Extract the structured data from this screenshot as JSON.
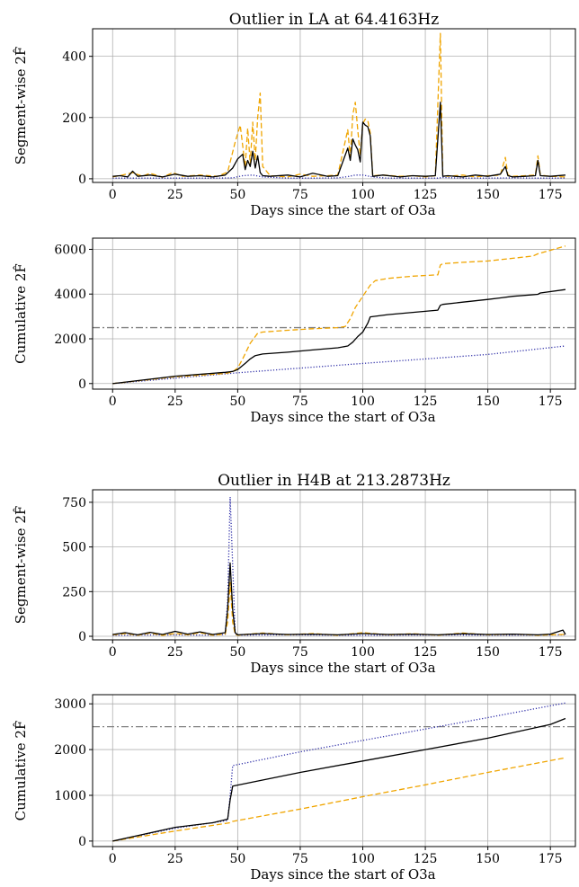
{
  "figure": {
    "background": "#ffffff",
    "grid_color": "#b0b0b0"
  },
  "chart_data": [
    {
      "id": "la_segment",
      "type": "line",
      "title": "Outlier in LA at 64.4163Hz",
      "xlabel": "Days since the start of O3a",
      "ylabel": "Segment-wise 2F̂",
      "xlim": [
        -8,
        185
      ],
      "ylim": [
        -12,
        490
      ],
      "xticks": [
        0,
        25,
        50,
        75,
        100,
        125,
        150,
        175
      ],
      "yticks": [
        0,
        200,
        400
      ],
      "grid": true,
      "series": [
        {
          "style": "dotted",
          "color": "#2f2fa8",
          "x": [
            0,
            10,
            20,
            30,
            40,
            48,
            52,
            56,
            60,
            70,
            80,
            90,
            94,
            97,
            100,
            104,
            110,
            120,
            130,
            132,
            140,
            150,
            160,
            170,
            181
          ],
          "y": [
            2,
            2,
            2,
            2,
            2,
            3,
            10,
            12,
            6,
            2,
            2,
            3,
            7,
            12,
            12,
            6,
            2,
            2,
            2,
            4,
            2,
            2,
            3,
            2,
            2
          ]
        },
        {
          "style": "dashed",
          "color": "#f0a500",
          "x": [
            0,
            4,
            8,
            12,
            15,
            20,
            24,
            28,
            35,
            42,
            46,
            49,
            51,
            53,
            54,
            55,
            56,
            57,
            58,
            59,
            60,
            63,
            70,
            75,
            80,
            86,
            90,
            94,
            95,
            96,
            97,
            98,
            99,
            100,
            101,
            102,
            103,
            104,
            108,
            115,
            120,
            125,
            129,
            131,
            132,
            134,
            140,
            145,
            150,
            155,
            157,
            158,
            160,
            165,
            169,
            170,
            171,
            175,
            181
          ],
          "y": [
            6,
            12,
            20,
            8,
            18,
            5,
            20,
            8,
            12,
            8,
            22,
            120,
            175,
            40,
            165,
            50,
            185,
            60,
            200,
            280,
            40,
            10,
            6,
            15,
            8,
            10,
            12,
            160,
            70,
            210,
            250,
            160,
            75,
            180,
            195,
            190,
            150,
            10,
            12,
            8,
            10,
            6,
            10,
            475,
            10,
            8,
            12,
            6,
            10,
            12,
            70,
            12,
            8,
            10,
            12,
            75,
            12,
            8,
            6
          ]
        },
        {
          "style": "solid",
          "color": "#000000",
          "x": [
            0,
            3,
            6,
            8,
            10,
            15,
            20,
            25,
            30,
            35,
            40,
            45,
            48,
            50,
            52,
            53,
            54,
            55,
            56,
            57,
            58,
            59,
            60,
            63,
            70,
            75,
            80,
            86,
            90,
            94,
            95,
            96,
            97,
            98,
            99,
            100,
            101,
            102,
            103,
            104,
            108,
            115,
            120,
            125,
            129,
            131,
            132,
            134,
            140,
            145,
            150,
            155,
            157,
            158,
            160,
            165,
            169,
            170,
            171,
            175,
            181
          ],
          "y": [
            8,
            10,
            6,
            25,
            8,
            12,
            6,
            15,
            8,
            10,
            6,
            12,
            35,
            65,
            80,
            30,
            60,
            40,
            90,
            35,
            75,
            20,
            10,
            8,
            12,
            6,
            18,
            8,
            10,
            100,
            60,
            130,
            110,
            95,
            55,
            185,
            175,
            170,
            140,
            8,
            12,
            6,
            10,
            8,
            10,
            250,
            8,
            10,
            6,
            12,
            8,
            15,
            40,
            10,
            6,
            8,
            10,
            60,
            10,
            8,
            12
          ]
        }
      ]
    },
    {
      "id": "la_cumulative",
      "type": "line",
      "title": "",
      "xlabel": "Days since the start of O3a",
      "ylabel": "Cumulative 2F̂",
      "xlim": [
        -8,
        185
      ],
      "ylim": [
        -250,
        6500
      ],
      "xticks": [
        0,
        25,
        50,
        75,
        100,
        125,
        150,
        175
      ],
      "yticks": [
        0,
        2000,
        4000,
        6000
      ],
      "grid": true,
      "threshold": {
        "y": 2500,
        "style": "dashdot",
        "color": "#808080"
      },
      "series": [
        {
          "style": "dotted",
          "color": "#2f2fa8",
          "x": [
            0,
            50,
            100,
            150,
            181
          ],
          "y": [
            0,
            480,
            900,
            1300,
            1680
          ]
        },
        {
          "style": "dashed",
          "color": "#f0a500",
          "x": [
            0,
            25,
            45,
            48,
            50,
            52,
            55,
            58,
            60,
            70,
            80,
            90,
            93,
            95,
            97,
            100,
            103,
            105,
            110,
            120,
            130,
            131,
            132,
            140,
            150,
            155,
            160,
            168,
            170,
            171,
            181
          ],
          "y": [
            0,
            300,
            450,
            520,
            700,
            1100,
            1800,
            2250,
            2300,
            2380,
            2450,
            2500,
            2550,
            2900,
            3400,
            3900,
            4400,
            4600,
            4700,
            4800,
            4860,
            5300,
            5360,
            5420,
            5480,
            5540,
            5600,
            5700,
            5800,
            5830,
            6150
          ]
        },
        {
          "style": "solid",
          "color": "#000000",
          "x": [
            0,
            25,
            45,
            48,
            50,
            53,
            55,
            57,
            60,
            70,
            80,
            90,
            94,
            96,
            98,
            100,
            102,
            103,
            110,
            120,
            130,
            131,
            132,
            140,
            150,
            155,
            160,
            168,
            170,
            171,
            181
          ],
          "y": [
            0,
            330,
            500,
            540,
            620,
            900,
            1100,
            1250,
            1320,
            1400,
            1500,
            1600,
            1680,
            1850,
            2100,
            2300,
            2700,
            2980,
            3080,
            3180,
            3280,
            3500,
            3540,
            3640,
            3760,
            3830,
            3900,
            3970,
            3990,
            4050,
            4200
          ]
        }
      ]
    },
    {
      "id": "h4b_segment",
      "type": "line",
      "title": "Outlier in H4B at 213.2873Hz",
      "xlabel": "Days since the start of O3a",
      "ylabel": "Segment-wise 2F̂",
      "xlim": [
        -8,
        185
      ],
      "ylim": [
        -20,
        820
      ],
      "xticks": [
        0,
        25,
        50,
        75,
        100,
        125,
        150,
        175
      ],
      "yticks": [
        0,
        250,
        500,
        750
      ],
      "grid": true,
      "series": [
        {
          "style": "dotted",
          "color": "#2f2fa8",
          "x": [
            0,
            20,
            40,
            45,
            46,
            47,
            48,
            49,
            50,
            70,
            100,
            130,
            160,
            181
          ],
          "y": [
            5,
            8,
            6,
            10,
            200,
            780,
            400,
            10,
            6,
            8,
            5,
            7,
            6,
            8
          ]
        },
        {
          "style": "dashed",
          "color": "#f0a500",
          "x": [
            0,
            5,
            10,
            15,
            20,
            25,
            30,
            35,
            40,
            45,
            46,
            47,
            48,
            49,
            50,
            60,
            70,
            80,
            90,
            100,
            110,
            120,
            130,
            140,
            150,
            160,
            170,
            181
          ],
          "y": [
            8,
            15,
            6,
            18,
            5,
            16,
            8,
            20,
            6,
            12,
            80,
            300,
            80,
            10,
            6,
            18,
            8,
            15,
            6,
            20,
            8,
            14,
            6,
            18,
            8,
            12,
            6,
            10
          ]
        },
        {
          "style": "solid",
          "color": "#000000",
          "x": [
            0,
            5,
            10,
            15,
            20,
            25,
            30,
            35,
            40,
            45,
            46,
            47,
            48,
            49,
            50,
            60,
            70,
            80,
            90,
            100,
            110,
            120,
            130,
            140,
            150,
            160,
            170,
            175,
            180,
            181
          ],
          "y": [
            10,
            20,
            8,
            22,
            10,
            28,
            12,
            25,
            10,
            20,
            150,
            410,
            150,
            20,
            8,
            15,
            10,
            12,
            8,
            15,
            10,
            12,
            8,
            14,
            10,
            12,
            8,
            12,
            35,
            10
          ]
        }
      ]
    },
    {
      "id": "h4b_cumulative",
      "type": "line",
      "title": "",
      "xlabel": "Days since the start of O3a",
      "ylabel": "Cumulative 2F̂",
      "xlim": [
        -8,
        185
      ],
      "ylim": [
        -120,
        3200
      ],
      "xticks": [
        0,
        25,
        50,
        75,
        100,
        125,
        150,
        175
      ],
      "yticks": [
        0,
        1000,
        2000,
        3000
      ],
      "grid": true,
      "threshold": {
        "y": 2500,
        "style": "dashdot",
        "color": "#808080"
      },
      "series": [
        {
          "style": "dotted",
          "color": "#2f2fa8",
          "x": [
            0,
            25,
            46,
            47,
            48,
            75,
            100,
            125,
            150,
            181
          ],
          "y": [
            0,
            280,
            450,
            1000,
            1650,
            1950,
            2200,
            2450,
            2700,
            3020
          ]
        },
        {
          "style": "dashed",
          "color": "#f0a500",
          "x": [
            0,
            25,
            47,
            48,
            75,
            100,
            125,
            150,
            181
          ],
          "y": [
            0,
            220,
            400,
            430,
            700,
            970,
            1230,
            1500,
            1820
          ]
        },
        {
          "style": "solid",
          "color": "#000000",
          "x": [
            0,
            25,
            40,
            46,
            47,
            48,
            75,
            100,
            125,
            150,
            175,
            181
          ],
          "y": [
            0,
            300,
            400,
            480,
            900,
            1200,
            1500,
            1750,
            2000,
            2250,
            2550,
            2680
          ]
        }
      ]
    }
  ]
}
